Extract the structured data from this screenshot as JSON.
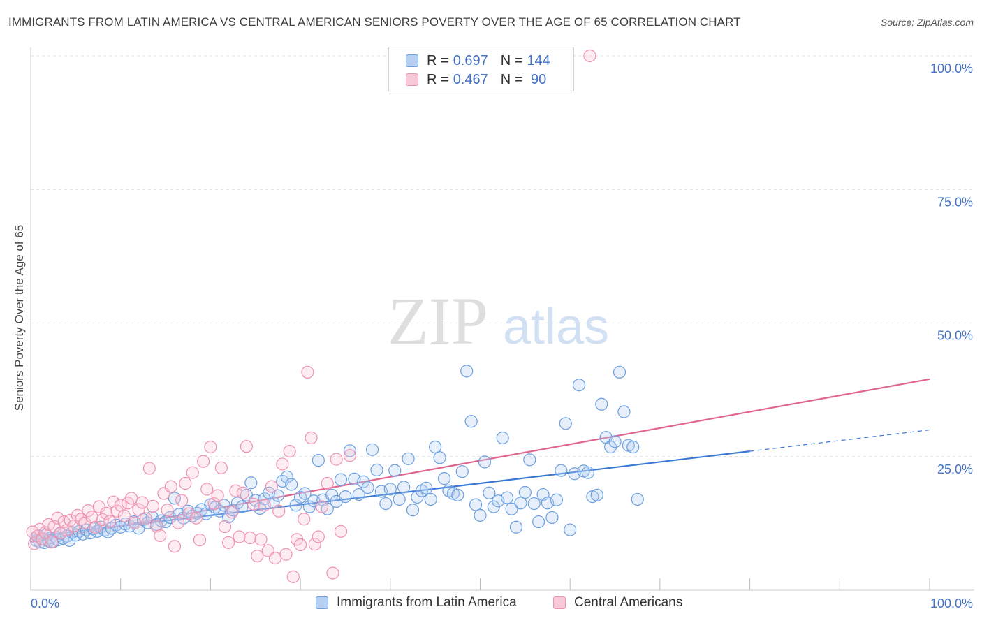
{
  "chart_data": {
    "type": "scatter",
    "title": "IMMIGRANTS FROM LATIN AMERICA VS CENTRAL AMERICAN SENIORS POVERTY OVER THE AGE OF 65 CORRELATION CHART",
    "source": "Source: ZipAtlas.com",
    "watermark": {
      "zip": "ZIP",
      "atlas": "atlas"
    },
    "xlabel": "",
    "ylabel": "Seniors Poverty Over the Age of 65",
    "xlim": [
      0,
      100
    ],
    "ylim": [
      0,
      100
    ],
    "x_tick_labels": [
      "0.0%",
      "100.0%"
    ],
    "y_ticks": [
      {
        "value": 25,
        "label": "25.0%"
      },
      {
        "value": 50,
        "label": "50.0%"
      },
      {
        "value": 75,
        "label": "75.0%"
      },
      {
        "value": 100,
        "label": "100.0%"
      }
    ],
    "grid": true,
    "legend_position": "bottom-center",
    "stats": [
      {
        "r_label": "R =",
        "r": "0.697",
        "n_label": "N =",
        "n": "144"
      },
      {
        "r_label": "R =",
        "r": "0.467",
        "n_label": "N =",
        "n": " 90"
      }
    ],
    "series": [
      {
        "name": "Immigrants from Latin America",
        "color": "#6a9fe0",
        "fill": "#b7d0f2",
        "line_color": "#3a78d6",
        "trend": {
          "x0": 0,
          "y0": 10.0,
          "x1": 80,
          "y1": 26.0,
          "dash_to_x": 100,
          "dash_to_y": 30.0
        },
        "points": [
          [
            0.6,
            9.3
          ],
          [
            0.8,
            10.2
          ],
          [
            1.0,
            9.0
          ],
          [
            1.2,
            9.6
          ],
          [
            1.5,
            8.9
          ],
          [
            1.7,
            10.4
          ],
          [
            2.0,
            9.2
          ],
          [
            2.2,
            9.8
          ],
          [
            2.5,
            9.1
          ],
          [
            2.8,
            9.9
          ],
          [
            3.0,
            9.4
          ],
          [
            3.3,
            10.6
          ],
          [
            3.6,
            9.7
          ],
          [
            4.0,
            10.1
          ],
          [
            4.3,
            9.3
          ],
          [
            4.6,
            10.8
          ],
          [
            5.0,
            10.3
          ],
          [
            5.4,
            11.0
          ],
          [
            5.8,
            10.5
          ],
          [
            6.2,
            11.3
          ],
          [
            6.6,
            10.7
          ],
          [
            7.0,
            11.5
          ],
          [
            7.4,
            11.0
          ],
          [
            7.8,
            11.8
          ],
          [
            8.2,
            11.2
          ],
          [
            8.6,
            10.9
          ],
          [
            9.0,
            11.6
          ],
          [
            9.5,
            12.2
          ],
          [
            10.0,
            11.8
          ],
          [
            10.5,
            12.4
          ],
          [
            11.0,
            12.0
          ],
          [
            11.5,
            12.8
          ],
          [
            12.0,
            11.6
          ],
          [
            12.5,
            13.2
          ],
          [
            13.0,
            12.6
          ],
          [
            13.5,
            13.7
          ],
          [
            14.0,
            12.3
          ],
          [
            14.5,
            13.0
          ],
          [
            15.0,
            12.8
          ],
          [
            15.5,
            13.6
          ],
          [
            16.0,
            17.2
          ],
          [
            16.5,
            14.2
          ],
          [
            17.0,
            13.5
          ],
          [
            17.5,
            14.8
          ],
          [
            18.0,
            13.9
          ],
          [
            18.5,
            14.4
          ],
          [
            19.0,
            15.1
          ],
          [
            19.5,
            14.3
          ],
          [
            20.0,
            16.0
          ],
          [
            20.5,
            15.5
          ],
          [
            21.0,
            14.8
          ],
          [
            21.5,
            15.9
          ],
          [
            22.0,
            13.7
          ],
          [
            22.5,
            15.0
          ],
          [
            23.0,
            16.3
          ],
          [
            23.5,
            15.6
          ],
          [
            24.0,
            17.8
          ],
          [
            24.5,
            20.1
          ],
          [
            25.0,
            16.8
          ],
          [
            25.5,
            15.3
          ],
          [
            26.0,
            17.1
          ],
          [
            26.5,
            18.2
          ],
          [
            27.0,
            16.4
          ],
          [
            27.5,
            17.7
          ],
          [
            28.0,
            20.4
          ],
          [
            28.5,
            21.2
          ],
          [
            29.0,
            19.8
          ],
          [
            29.5,
            15.9
          ],
          [
            30.0,
            17.4
          ],
          [
            30.5,
            18.1
          ],
          [
            31.0,
            15.6
          ],
          [
            31.5,
            16.7
          ],
          [
            32.0,
            24.3
          ],
          [
            32.5,
            16.9
          ],
          [
            33.0,
            15.2
          ],
          [
            33.5,
            17.8
          ],
          [
            34.0,
            16.6
          ],
          [
            34.5,
            20.7
          ],
          [
            35.0,
            17.5
          ],
          [
            35.5,
            26.1
          ],
          [
            36.0,
            20.8
          ],
          [
            36.5,
            17.9
          ],
          [
            37.0,
            20.3
          ],
          [
            37.5,
            19.2
          ],
          [
            38.0,
            26.3
          ],
          [
            38.5,
            22.5
          ],
          [
            39.0,
            18.5
          ],
          [
            39.5,
            16.2
          ],
          [
            40.0,
            18.9
          ],
          [
            40.5,
            22.4
          ],
          [
            41.0,
            17.0
          ],
          [
            41.5,
            19.3
          ],
          [
            42.0,
            24.6
          ],
          [
            42.5,
            15.0
          ],
          [
            43.0,
            17.4
          ],
          [
            43.5,
            18.6
          ],
          [
            44.0,
            19.1
          ],
          [
            44.5,
            17.0
          ],
          [
            45.0,
            26.8
          ],
          [
            45.5,
            24.8
          ],
          [
            46.0,
            20.9
          ],
          [
            46.5,
            18.6
          ],
          [
            47.0,
            18.1
          ],
          [
            47.5,
            17.8
          ],
          [
            48.0,
            22.2
          ],
          [
            48.5,
            41.0
          ],
          [
            49.0,
            31.6
          ],
          [
            49.5,
            16.0
          ],
          [
            50.0,
            14.0
          ],
          [
            50.5,
            24.0
          ],
          [
            51.0,
            18.2
          ],
          [
            51.5,
            15.6
          ],
          [
            52.0,
            16.7
          ],
          [
            52.5,
            28.5
          ],
          [
            53.0,
            17.3
          ],
          [
            53.5,
            15.2
          ],
          [
            54.0,
            11.8
          ],
          [
            54.5,
            16.3
          ],
          [
            55.0,
            18.3
          ],
          [
            55.5,
            24.4
          ],
          [
            56.0,
            16.2
          ],
          [
            56.5,
            12.8
          ],
          [
            57.0,
            17.9
          ],
          [
            57.5,
            16.3
          ],
          [
            58.0,
            13.6
          ],
          [
            58.5,
            16.9
          ],
          [
            59.0,
            22.4
          ],
          [
            59.5,
            31.2
          ],
          [
            60.0,
            11.3
          ],
          [
            60.5,
            21.8
          ],
          [
            61.0,
            38.4
          ],
          [
            61.5,
            22.3
          ],
          [
            62.0,
            22.0
          ],
          [
            62.5,
            17.5
          ],
          [
            63.0,
            17.8
          ],
          [
            63.5,
            34.8
          ],
          [
            64.0,
            28.6
          ],
          [
            64.5,
            26.8
          ],
          [
            65.0,
            27.8
          ],
          [
            65.5,
            40.8
          ],
          [
            66.0,
            33.4
          ],
          [
            66.5,
            27.1
          ],
          [
            67.0,
            26.8
          ],
          [
            67.5,
            17.0
          ]
        ]
      },
      {
        "name": "Central Americans",
        "color": "#ee92b0",
        "fill": "#f8c9d8",
        "line_color": "#e06690",
        "trend": {
          "x0": 0,
          "y0": 9.0,
          "x1": 100,
          "y1": 39.5
        },
        "points": [
          [
            0.2,
            10.9
          ],
          [
            0.4,
            8.7
          ],
          [
            0.7,
            10.1
          ],
          [
            1.0,
            11.4
          ],
          [
            1.3,
            9.6
          ],
          [
            1.6,
            10.8
          ],
          [
            2.0,
            12.3
          ],
          [
            2.3,
            9.0
          ],
          [
            2.6,
            11.9
          ],
          [
            3.0,
            13.5
          ],
          [
            3.3,
            10.7
          ],
          [
            3.7,
            12.8
          ],
          [
            4.0,
            11.2
          ],
          [
            4.4,
            13.1
          ],
          [
            4.8,
            12.0
          ],
          [
            5.2,
            14.0
          ],
          [
            5.6,
            13.3
          ],
          [
            6.0,
            12.6
          ],
          [
            6.4,
            14.9
          ],
          [
            6.8,
            13.7
          ],
          [
            7.2,
            11.8
          ],
          [
            7.6,
            15.6
          ],
          [
            8.0,
            13.2
          ],
          [
            8.4,
            14.4
          ],
          [
            8.8,
            12.9
          ],
          [
            9.2,
            16.5
          ],
          [
            9.6,
            14.8
          ],
          [
            10.0,
            15.9
          ],
          [
            10.4,
            13.9
          ],
          [
            10.8,
            16.3
          ],
          [
            11.2,
            17.2
          ],
          [
            11.6,
            12.6
          ],
          [
            12.0,
            15.1
          ],
          [
            12.4,
            16.4
          ],
          [
            12.8,
            13.4
          ],
          [
            13.2,
            22.8
          ],
          [
            13.6,
            15.7
          ],
          [
            14.0,
            12.0
          ],
          [
            14.4,
            10.2
          ],
          [
            14.8,
            18.1
          ],
          [
            15.2,
            15.0
          ],
          [
            15.6,
            19.4
          ],
          [
            16.0,
            8.2
          ],
          [
            16.4,
            12.6
          ],
          [
            16.8,
            16.8
          ],
          [
            17.2,
            20.0
          ],
          [
            17.6,
            14.3
          ],
          [
            18.0,
            22.0
          ],
          [
            18.4,
            13.5
          ],
          [
            18.8,
            9.4
          ],
          [
            19.2,
            24.1
          ],
          [
            19.6,
            18.9
          ],
          [
            20.0,
            26.8
          ],
          [
            20.4,
            16.2
          ],
          [
            20.8,
            17.7
          ],
          [
            21.2,
            22.9
          ],
          [
            21.6,
            11.9
          ],
          [
            22.0,
            8.9
          ],
          [
            22.4,
            14.6
          ],
          [
            22.8,
            18.6
          ],
          [
            23.2,
            10.0
          ],
          [
            23.6,
            18.2
          ],
          [
            24.0,
            26.9
          ],
          [
            24.4,
            9.8
          ],
          [
            24.8,
            16.1
          ],
          [
            25.2,
            6.4
          ],
          [
            25.6,
            9.5
          ],
          [
            26.0,
            15.9
          ],
          [
            26.4,
            7.4
          ],
          [
            26.8,
            19.4
          ],
          [
            27.2,
            6.0
          ],
          [
            27.6,
            14.8
          ],
          [
            28.0,
            23.6
          ],
          [
            28.4,
            6.7
          ],
          [
            28.8,
            26.0
          ],
          [
            29.2,
            2.5
          ],
          [
            29.6,
            9.5
          ],
          [
            30.0,
            8.5
          ],
          [
            30.4,
            13.3
          ],
          [
            30.8,
            40.8
          ],
          [
            31.2,
            28.5
          ],
          [
            31.6,
            8.6
          ],
          [
            32.0,
            10.0
          ],
          [
            32.4,
            15.6
          ],
          [
            33.0,
            20.0
          ],
          [
            33.6,
            3.2
          ],
          [
            34.0,
            24.5
          ],
          [
            34.5,
            11.0
          ],
          [
            35.5,
            25.2
          ],
          [
            62.2,
            100.0
          ]
        ]
      }
    ]
  }
}
